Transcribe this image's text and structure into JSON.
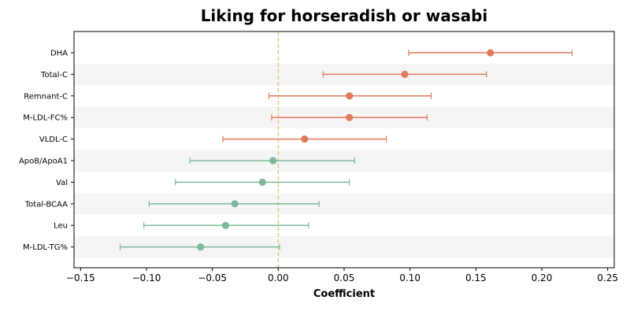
{
  "chart_data": {
    "type": "forest",
    "title": "Liking for horseradish or wasabi",
    "xlabel": "Coefficient",
    "ylabel": "",
    "xlim": [
      -0.155,
      0.255
    ],
    "xticks": [
      -0.15,
      -0.1,
      -0.05,
      0.0,
      0.05,
      0.1,
      0.15,
      0.2,
      0.25
    ],
    "xtick_labels": [
      "−0.15",
      "−0.10",
      "−0.05",
      "0.00",
      "0.05",
      "0.10",
      "0.15",
      "0.20",
      "0.25"
    ],
    "reference_line": {
      "x": 0,
      "style": "dashed",
      "color": "#f5c07a"
    },
    "grid": false,
    "row_band_color": "#f5f5f5",
    "colors": {
      "positive": "#e07b5e",
      "negative": "#7fb89a"
    },
    "items": [
      {
        "label": "DHA",
        "estimate": 0.161,
        "ci_low": 0.099,
        "ci_high": 0.223,
        "group": "positive"
      },
      {
        "label": "Total-C",
        "estimate": 0.096,
        "ci_low": 0.034,
        "ci_high": 0.158,
        "group": "positive"
      },
      {
        "label": "Remnant-C",
        "estimate": 0.054,
        "ci_low": -0.007,
        "ci_high": 0.116,
        "group": "positive"
      },
      {
        "label": "M-LDL-FC%",
        "estimate": 0.054,
        "ci_low": -0.005,
        "ci_high": 0.113,
        "group": "positive"
      },
      {
        "label": "VLDL-C",
        "estimate": 0.02,
        "ci_low": -0.042,
        "ci_high": 0.082,
        "group": "positive"
      },
      {
        "label": "ApoB/ApoA1",
        "estimate": -0.004,
        "ci_low": -0.067,
        "ci_high": 0.058,
        "group": "negative"
      },
      {
        "label": "Val",
        "estimate": -0.012,
        "ci_low": -0.078,
        "ci_high": 0.054,
        "group": "negative"
      },
      {
        "label": "Total-BCAA",
        "estimate": -0.033,
        "ci_low": -0.098,
        "ci_high": 0.031,
        "group": "negative"
      },
      {
        "label": "Leu",
        "estimate": -0.04,
        "ci_low": -0.102,
        "ci_high": 0.023,
        "group": "negative"
      },
      {
        "label": "M-LDL-TG%",
        "estimate": -0.059,
        "ci_low": -0.12,
        "ci_high": 0.001,
        "group": "negative"
      }
    ]
  }
}
